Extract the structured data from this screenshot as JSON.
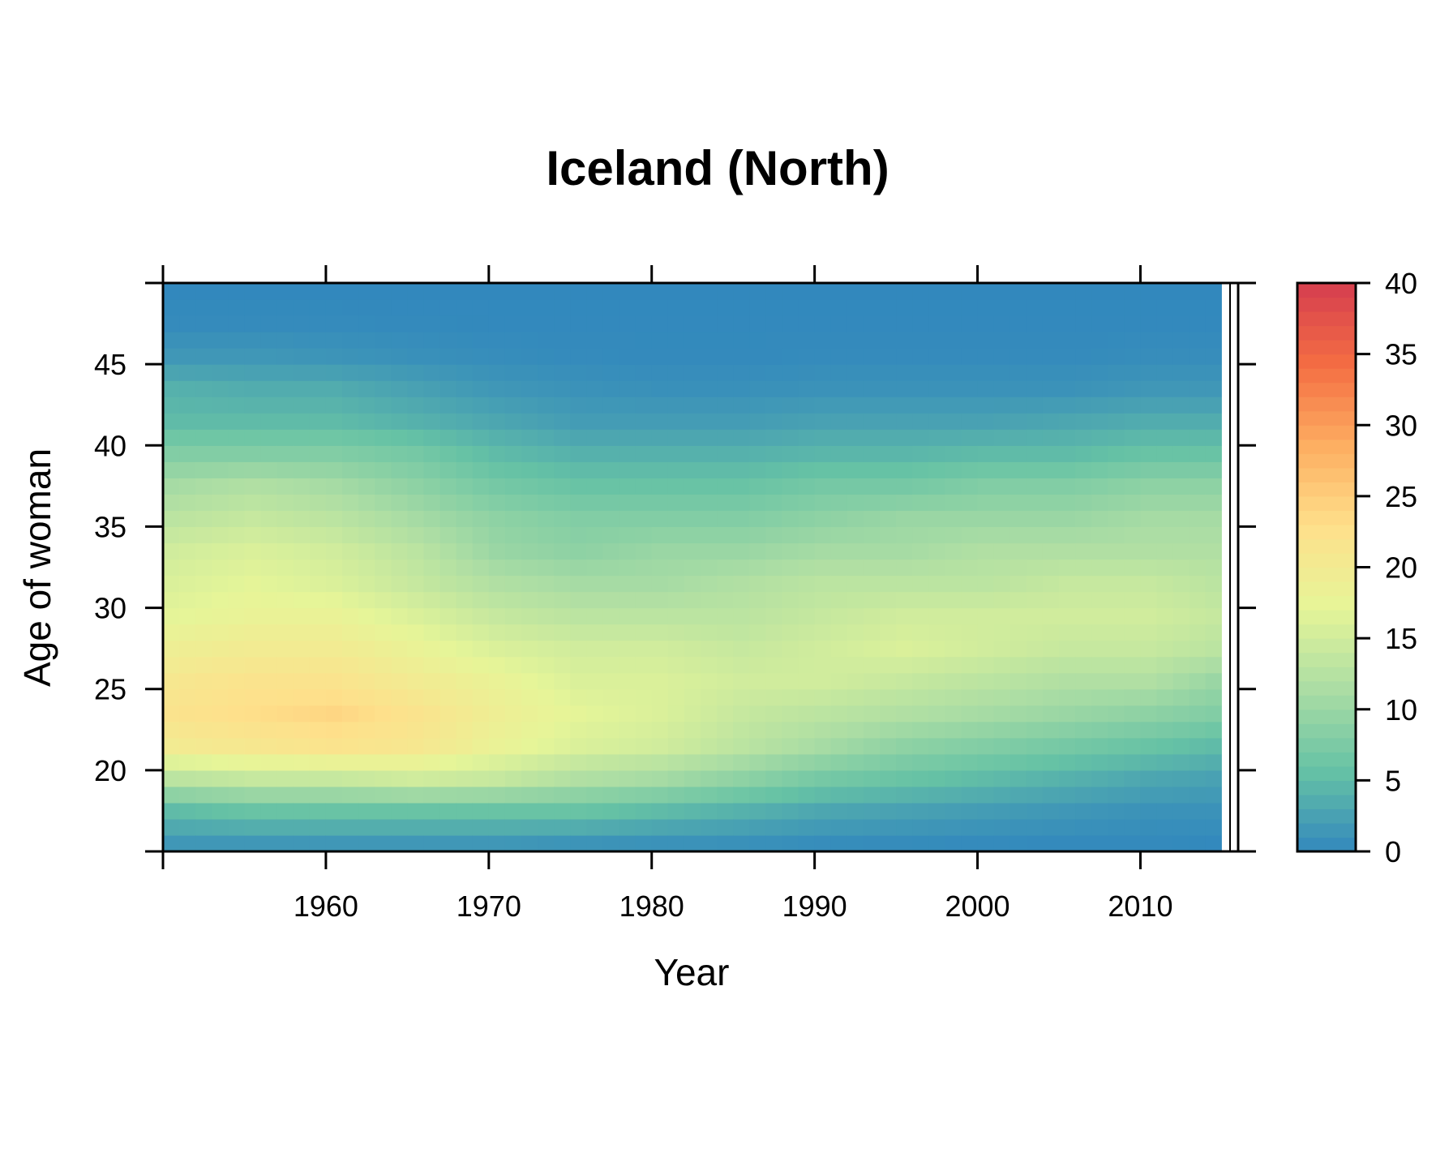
{
  "chart_data": {
    "type": "heatmap",
    "title": "Iceland (North)",
    "xlabel": "Year",
    "ylabel": "Age of woman",
    "xlim": [
      1950,
      2016
    ],
    "ylim": [
      15,
      50
    ],
    "x_ticks": [
      1960,
      1970,
      1980,
      1990,
      2000,
      2010
    ],
    "y_ticks": [
      20,
      25,
      30,
      35,
      40,
      45
    ],
    "x": {
      "start": 1950,
      "end": 2014,
      "step": 1
    },
    "y": {
      "start": 15,
      "end": 49,
      "step": 1
    },
    "value_range": [
      0,
      40
    ],
    "colorbar": {
      "ticks": [
        0,
        5,
        10,
        15,
        20,
        25,
        30,
        35,
        40
      ],
      "tick_labels": [
        "0",
        "5",
        "10",
        "15",
        "20",
        "25",
        "30",
        "35",
        "40"
      ],
      "colors": [
        "#3288bd",
        "#66c2a5",
        "#abdda4",
        "#e6f598",
        "#fee08b",
        "#fdae61",
        "#f46d43",
        "#d53e4f"
      ]
    },
    "profile_by_year": [
      {
        "year": 1950,
        "ages": [
          15,
          17,
          19,
          21,
          23,
          25,
          27,
          29,
          31,
          33,
          35,
          37,
          39,
          41,
          43,
          45,
          47,
          49
        ],
        "values": [
          1.5,
          5,
          13,
          20,
          22,
          21,
          19,
          17,
          16,
          15,
          13,
          11,
          8,
          5,
          4,
          1.5,
          0.3,
          0
        ]
      },
      {
        "year": 1955,
        "ages": [
          15,
          17,
          19,
          21,
          23,
          25,
          27,
          29,
          31,
          33,
          35,
          37,
          39,
          41,
          43,
          45,
          47,
          49
        ],
        "values": [
          1.5,
          6,
          14,
          21,
          23,
          22,
          20,
          18,
          17,
          16,
          14,
          12,
          8,
          5,
          3.5,
          1.5,
          0.3,
          0
        ]
      },
      {
        "year": 1960,
        "ages": [
          15,
          17,
          19,
          21,
          23,
          25,
          27,
          29,
          31,
          33,
          35,
          37,
          39,
          41,
          43,
          45,
          47,
          49
        ],
        "values": [
          1.5,
          6,
          14,
          22,
          24,
          22,
          20,
          18,
          16,
          15,
          13,
          11,
          8,
          5,
          3.5,
          1.2,
          0.3,
          0
        ]
      },
      {
        "year": 1965,
        "ages": [
          15,
          17,
          19,
          21,
          23,
          25,
          27,
          29,
          31,
          33,
          35,
          37,
          39,
          41,
          43,
          45,
          47,
          49
        ],
        "values": [
          1.5,
          6,
          15,
          21,
          22,
          20,
          18,
          16,
          14,
          13,
          11,
          9,
          7,
          4,
          2.5,
          0.8,
          0.2,
          0
        ]
      },
      {
        "year": 1970,
        "ages": [
          15,
          17,
          19,
          21,
          23,
          25,
          27,
          29,
          31,
          33,
          35,
          37,
          39,
          41,
          43,
          45,
          47,
          49
        ],
        "values": [
          1.5,
          6,
          14,
          18,
          19,
          18,
          16,
          14,
          12,
          10,
          9,
          7,
          5,
          3,
          1.5,
          0.5,
          0.1,
          0
        ]
      },
      {
        "year": 1975,
        "ages": [
          15,
          17,
          19,
          21,
          23,
          25,
          27,
          29,
          31,
          33,
          35,
          37,
          39,
          41,
          43,
          45,
          47,
          49
        ],
        "values": [
          1.2,
          6,
          12,
          16,
          17,
          16,
          15,
          13,
          11,
          9,
          8,
          6,
          4,
          2,
          1,
          0.3,
          0.1,
          0
        ]
      },
      {
        "year": 1980,
        "ages": [
          15,
          17,
          19,
          21,
          23,
          25,
          27,
          29,
          31,
          33,
          35,
          37,
          39,
          41,
          43,
          45,
          47,
          49
        ],
        "values": [
          1,
          5,
          11,
          15,
          16,
          16,
          15,
          13,
          11,
          10,
          8,
          6,
          4,
          2,
          0.8,
          0.2,
          0.1,
          0
        ]
      },
      {
        "year": 1985,
        "ages": [
          15,
          17,
          19,
          21,
          23,
          25,
          27,
          29,
          31,
          33,
          35,
          37,
          39,
          41,
          43,
          45,
          47,
          49
        ],
        "values": [
          0.9,
          4,
          9,
          13,
          14,
          15,
          14,
          13,
          12,
          10,
          8,
          6,
          4,
          2,
          0.8,
          0.2,
          0.1,
          0
        ]
      },
      {
        "year": 1990,
        "ages": [
          15,
          17,
          19,
          21,
          23,
          25,
          27,
          29,
          31,
          33,
          35,
          37,
          39,
          41,
          43,
          45,
          47,
          49
        ],
        "values": [
          0.5,
          3,
          7,
          11,
          13,
          15,
          15,
          14,
          13,
          11,
          9,
          7,
          4.5,
          2.5,
          1,
          0.3,
          0.1,
          0
        ]
      },
      {
        "year": 1995,
        "ages": [
          15,
          17,
          19,
          21,
          23,
          25,
          27,
          29,
          31,
          33,
          35,
          37,
          39,
          41,
          43,
          45,
          47,
          49
        ],
        "values": [
          0.4,
          2.5,
          6,
          9,
          12,
          14,
          16,
          15,
          13,
          11,
          10,
          7,
          4.5,
          2.5,
          1,
          0.3,
          0.1,
          0
        ]
      },
      {
        "year": 2000,
        "ages": [
          15,
          17,
          19,
          21,
          23,
          25,
          27,
          29,
          31,
          33,
          35,
          37,
          39,
          41,
          43,
          45,
          47,
          49
        ],
        "values": [
          0.3,
          2,
          5,
          8,
          11,
          13,
          15,
          15,
          13,
          12,
          10,
          8,
          5,
          2.5,
          1,
          0.3,
          0.1,
          0
        ]
      },
      {
        "year": 2005,
        "ages": [
          15,
          17,
          19,
          21,
          23,
          25,
          27,
          29,
          31,
          33,
          35,
          37,
          39,
          41,
          43,
          45,
          47,
          49
        ],
        "values": [
          0.2,
          1.5,
          4,
          7,
          10,
          12,
          14,
          15,
          14,
          12,
          10,
          8,
          5,
          3,
          1,
          0.3,
          0.1,
          0
        ]
      },
      {
        "year": 2010,
        "ages": [
          15,
          17,
          19,
          21,
          23,
          25,
          27,
          29,
          31,
          33,
          35,
          37,
          39,
          41,
          43,
          45,
          47,
          49
        ],
        "values": [
          0.2,
          1,
          3,
          6,
          9,
          12,
          14,
          15,
          14,
          12,
          11,
          9,
          6,
          3.5,
          1.5,
          0.5,
          0.1,
          0
        ]
      },
      {
        "year": 2014,
        "ages": [
          15,
          17,
          19,
          21,
          23,
          25,
          27,
          29,
          31,
          33,
          35,
          37,
          39,
          41,
          43,
          45,
          47,
          49
        ],
        "values": [
          0.1,
          1,
          2.5,
          5,
          8,
          10,
          13,
          14,
          13,
          12,
          11,
          9,
          6,
          3.5,
          1.5,
          0.5,
          0.1,
          0
        ]
      }
    ]
  }
}
